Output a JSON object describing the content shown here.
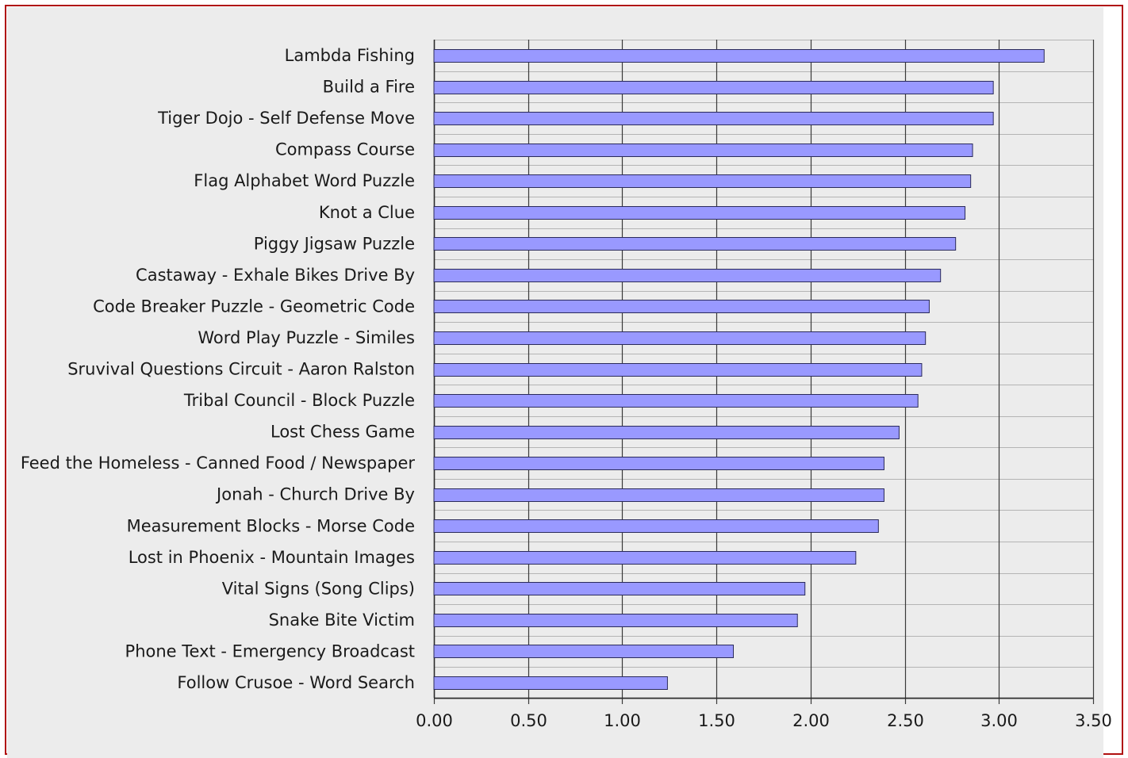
{
  "colors": {
    "frame_border": "#b01010",
    "plot_background": "#ececec",
    "bar_fill": "#9999ff",
    "bar_stroke": "#2a2a5a",
    "major_grid": "#3a3a3a",
    "minor_grid": "#b4b4b4"
  },
  "chart_data": {
    "type": "bar",
    "orientation": "horizontal",
    "title": "",
    "xlabel": "",
    "ylabel": "",
    "xlim": [
      0,
      3.5
    ],
    "x_ticks": [
      "0.00",
      "0.50",
      "1.00",
      "1.50",
      "2.00",
      "2.50",
      "3.00",
      "3.50"
    ],
    "grid": true,
    "legend": "none",
    "categories": [
      "Lambda Fishing",
      "Build a Fire",
      "Tiger Dojo - Self Defense Move",
      "Compass Course",
      "Flag Alphabet Word Puzzle",
      "Knot a Clue",
      "Piggy Jigsaw Puzzle",
      "Castaway - Exhale Bikes Drive By",
      "Code Breaker Puzzle - Geometric Code",
      "Word Play Puzzle - Similes",
      "Sruvival Questions Circuit - Aaron Ralston",
      "Tribal Council - Block Puzzle",
      "Lost Chess Game",
      "Feed the Homeless - Canned Food / Newspaper",
      "Jonah - Church Drive By",
      "Measurement Blocks - Morse Code",
      "Lost in Phoenix - Mountain Images",
      "Vital Signs (Song Clips)",
      "Snake Bite Victim",
      "Phone Text - Emergency Broadcast",
      "Follow Crusoe - Word Search"
    ],
    "values": [
      3.24,
      2.97,
      2.97,
      2.86,
      2.85,
      2.82,
      2.77,
      2.69,
      2.63,
      2.61,
      2.59,
      2.57,
      2.47,
      2.39,
      2.39,
      2.36,
      2.24,
      1.97,
      1.93,
      1.59,
      1.24
    ]
  }
}
